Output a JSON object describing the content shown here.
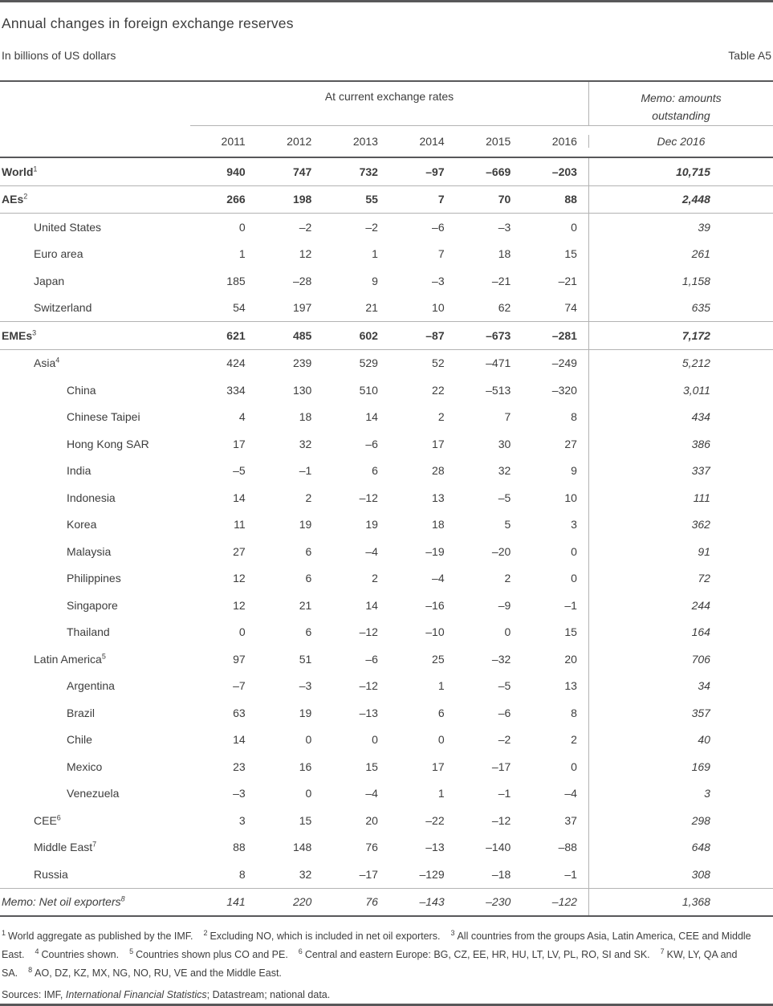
{
  "colors": {
    "text": "#3d3d3d",
    "dark_rule": "#58585a",
    "thin_rule": "#b3b3b3"
  },
  "header": {
    "title": "Annual changes in foreign exchange reserves",
    "subtitle": "In billions of US dollars",
    "table_label": "Table A5"
  },
  "table": {
    "group_header": "At current exchange rates",
    "memo_header": "Memo: amounts outstanding",
    "year_columns": [
      "2011",
      "2012",
      "2013",
      "2014",
      "2015",
      "2016"
    ],
    "memo_column": "Dec 2016",
    "rows": [
      {
        "label": "World",
        "sup": "1",
        "indent": 0,
        "style": "bold",
        "rule": "thin",
        "values": [
          "940",
          "747",
          "732",
          "–97",
          "–669",
          "–203"
        ],
        "memo": "10,715"
      },
      {
        "label": "AEs",
        "sup": "2",
        "indent": 0,
        "style": "bold",
        "rule": "thin",
        "values": [
          "266",
          "198",
          "55",
          "7",
          "70",
          "88"
        ],
        "memo": "2,448"
      },
      {
        "label": "United States",
        "sup": "",
        "indent": 1,
        "style": "plain",
        "rule": "none",
        "values": [
          "0",
          "–2",
          "–2",
          "–6",
          "–3",
          "0"
        ],
        "memo": "39"
      },
      {
        "label": "Euro area",
        "sup": "",
        "indent": 1,
        "style": "plain",
        "rule": "none",
        "values": [
          "1",
          "12",
          "1",
          "7",
          "18",
          "15"
        ],
        "memo": "261"
      },
      {
        "label": "Japan",
        "sup": "",
        "indent": 1,
        "style": "plain",
        "rule": "none",
        "values": [
          "185",
          "–28",
          "9",
          "–3",
          "–21",
          "–21"
        ],
        "memo": "1,158"
      },
      {
        "label": "Switzerland",
        "sup": "",
        "indent": 1,
        "style": "plain",
        "rule": "thin",
        "values": [
          "54",
          "197",
          "21",
          "10",
          "62",
          "74"
        ],
        "memo": "635"
      },
      {
        "label": "EMEs",
        "sup": "3",
        "indent": 0,
        "style": "bold",
        "rule": "thin",
        "values": [
          "621",
          "485",
          "602",
          "–87",
          "–673",
          "–281"
        ],
        "memo": "7,172"
      },
      {
        "label": "Asia",
        "sup": "4",
        "indent": 1,
        "style": "plain",
        "rule": "none",
        "values": [
          "424",
          "239",
          "529",
          "52",
          "–471",
          "–249"
        ],
        "memo": "5,212"
      },
      {
        "label": "China",
        "sup": "",
        "indent": 2,
        "style": "plain",
        "rule": "none",
        "values": [
          "334",
          "130",
          "510",
          "22",
          "–513",
          "–320"
        ],
        "memo": "3,011"
      },
      {
        "label": "Chinese Taipei",
        "sup": "",
        "indent": 2,
        "style": "plain",
        "rule": "none",
        "values": [
          "4",
          "18",
          "14",
          "2",
          "7",
          "8"
        ],
        "memo": "434"
      },
      {
        "label": "Hong Kong SAR",
        "sup": "",
        "indent": 2,
        "style": "plain",
        "rule": "none",
        "values": [
          "17",
          "32",
          "–6",
          "17",
          "30",
          "27"
        ],
        "memo": "386"
      },
      {
        "label": "India",
        "sup": "",
        "indent": 2,
        "style": "plain",
        "rule": "none",
        "values": [
          "–5",
          "–1",
          "6",
          "28",
          "32",
          "9"
        ],
        "memo": "337"
      },
      {
        "label": "Indonesia",
        "sup": "",
        "indent": 2,
        "style": "plain",
        "rule": "none",
        "values": [
          "14",
          "2",
          "–12",
          "13",
          "–5",
          "10"
        ],
        "memo": "111"
      },
      {
        "label": "Korea",
        "sup": "",
        "indent": 2,
        "style": "plain",
        "rule": "none",
        "values": [
          "11",
          "19",
          "19",
          "18",
          "5",
          "3"
        ],
        "memo": "362"
      },
      {
        "label": "Malaysia",
        "sup": "",
        "indent": 2,
        "style": "plain",
        "rule": "none",
        "values": [
          "27",
          "6",
          "–4",
          "–19",
          "–20",
          "0"
        ],
        "memo": "91"
      },
      {
        "label": "Philippines",
        "sup": "",
        "indent": 2,
        "style": "plain",
        "rule": "none",
        "values": [
          "12",
          "6",
          "2",
          "–4",
          "2",
          "0"
        ],
        "memo": "72"
      },
      {
        "label": "Singapore",
        "sup": "",
        "indent": 2,
        "style": "plain",
        "rule": "none",
        "values": [
          "12",
          "21",
          "14",
          "–16",
          "–9",
          "–1"
        ],
        "memo": "244"
      },
      {
        "label": "Thailand",
        "sup": "",
        "indent": 2,
        "style": "plain",
        "rule": "none",
        "values": [
          "0",
          "6",
          "–12",
          "–10",
          "0",
          "15"
        ],
        "memo": "164"
      },
      {
        "label": "Latin America",
        "sup": "5",
        "indent": 1,
        "style": "plain",
        "rule": "none",
        "values": [
          "97",
          "51",
          "–6",
          "25",
          "–32",
          "20"
        ],
        "memo": "706"
      },
      {
        "label": "Argentina",
        "sup": "",
        "indent": 2,
        "style": "plain",
        "rule": "none",
        "values": [
          "–7",
          "–3",
          "–12",
          "1",
          "–5",
          "13"
        ],
        "memo": "34"
      },
      {
        "label": "Brazil",
        "sup": "",
        "indent": 2,
        "style": "plain",
        "rule": "none",
        "values": [
          "63",
          "19",
          "–13",
          "6",
          "–6",
          "8"
        ],
        "memo": "357"
      },
      {
        "label": "Chile",
        "sup": "",
        "indent": 2,
        "style": "plain",
        "rule": "none",
        "values": [
          "14",
          "0",
          "0",
          "0",
          "–2",
          "2"
        ],
        "memo": "40"
      },
      {
        "label": "Mexico",
        "sup": "",
        "indent": 2,
        "style": "plain",
        "rule": "none",
        "values": [
          "23",
          "16",
          "15",
          "17",
          "–17",
          "0"
        ],
        "memo": "169"
      },
      {
        "label": "Venezuela",
        "sup": "",
        "indent": 2,
        "style": "plain",
        "rule": "none",
        "values": [
          "–3",
          "0",
          "–4",
          "1",
          "–1",
          "–4"
        ],
        "memo": "3"
      },
      {
        "label": "CEE",
        "sup": "6",
        "indent": 1,
        "style": "plain",
        "rule": "none",
        "values": [
          "3",
          "15",
          "20",
          "–22",
          "–12",
          "37"
        ],
        "memo": "298"
      },
      {
        "label": "Middle East",
        "sup": "7",
        "indent": 1,
        "style": "plain",
        "rule": "none",
        "values": [
          "88",
          "148",
          "76",
          "–13",
          "–140",
          "–88"
        ],
        "memo": "648"
      },
      {
        "label": "Russia",
        "sup": "",
        "indent": 1,
        "style": "plain",
        "rule": "thin",
        "values": [
          "8",
          "32",
          "–17",
          "–129",
          "–18",
          "–1"
        ],
        "memo": "308"
      },
      {
        "label": "Memo: Net oil exporters",
        "sup": "8",
        "indent": 0,
        "style": "memo",
        "rule": "dark",
        "values": [
          "141",
          "220",
          "76",
          "–143",
          "–230",
          "–122"
        ],
        "memo": "1,368"
      }
    ]
  },
  "footnotes": [
    {
      "sup": "1",
      "text": "World aggregate as published by the IMF."
    },
    {
      "sup": "2",
      "text": "Excluding NO, which is included in net oil exporters."
    },
    {
      "sup": "3",
      "text": "All countries from the groups Asia, Latin America, CEE and Middle East."
    },
    {
      "sup": "4",
      "text": "Countries shown."
    },
    {
      "sup": "5",
      "text": "Countries shown plus CO and PE."
    },
    {
      "sup": "6",
      "text": "Central and eastern Europe: BG, CZ, EE, HR, HU, LT, LV, PL, RO, SI and SK."
    },
    {
      "sup": "7",
      "text": "KW, LY, QA and SA."
    },
    {
      "sup": "8",
      "text": "AO, DZ, KZ, MX, NG, NO, RU, VE and the Middle East."
    }
  ],
  "sources": {
    "prefix": "Sources: IMF, ",
    "italic_title": "International Financial Statistics",
    "suffix": "; Datastream; national data."
  }
}
